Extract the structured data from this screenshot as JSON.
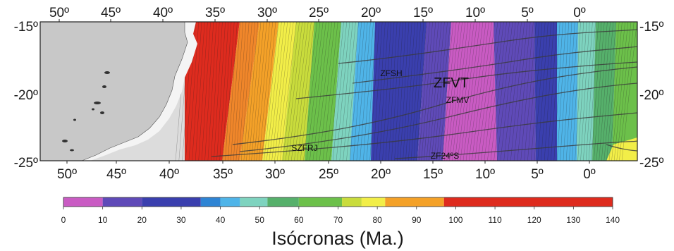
{
  "map": {
    "top_longitude_labels": [
      "50º",
      "45º",
      "40º",
      "35º",
      "30º",
      "25º",
      "20º",
      "15º",
      "10º",
      "5º",
      "0º"
    ],
    "bottom_longitude_labels": [
      "50º",
      "45º",
      "40º",
      "35º",
      "30º",
      "25º",
      "20º",
      "15º",
      "10º",
      "5º",
      "0º"
    ],
    "left_latitude_labels": [
      "-15º",
      "-20º",
      "-25º"
    ],
    "right_latitude_labels": [
      "-15º",
      "-20º",
      "-25º"
    ],
    "features": [
      {
        "name": "ZFSH",
        "size": "small"
      },
      {
        "name": "ZFVT",
        "size": "large"
      },
      {
        "name": "ZFMV",
        "size": "small"
      },
      {
        "name": "SZFRJ",
        "size": "small"
      },
      {
        "name": "ZF24ºS",
        "size": "small"
      }
    ],
    "colors": {
      "land": "#c8c8c8",
      "shelf": "#f4f4f4",
      "fracture_zones": "#3a3a3a",
      "isochron_lines": "#1f1f1f"
    }
  },
  "colorbar": {
    "tick_labels": [
      "0",
      "10",
      "20",
      "30",
      "40",
      "50",
      "60",
      "70",
      "80",
      "90",
      "100",
      "110",
      "120",
      "130",
      "140"
    ],
    "title": "Isócronas (Ma.)",
    "stops": [
      {
        "from": 0,
        "to": 10,
        "color": "#c95bc3"
      },
      {
        "from": 10,
        "to": 20,
        "color": "#5f4ab8"
      },
      {
        "from": 20,
        "to": 35,
        "color": "#3a3fae"
      },
      {
        "from": 35,
        "to": 40,
        "color": "#2e84d4"
      },
      {
        "from": 40,
        "to": 45,
        "color": "#4fb4e8"
      },
      {
        "from": 45,
        "to": 52,
        "color": "#7ed3bf"
      },
      {
        "from": 52,
        "to": 60,
        "color": "#56b06b"
      },
      {
        "from": 60,
        "to": 71,
        "color": "#6cc04a"
      },
      {
        "from": 71,
        "to": 76,
        "color": "#c9dc3c"
      },
      {
        "from": 76,
        "to": 82,
        "color": "#f2ee48"
      },
      {
        "from": 82,
        "to": 97,
        "color": "#f4a128"
      },
      {
        "from": 97,
        "to": 140,
        "color": "#de2b1e"
      }
    ]
  }
}
